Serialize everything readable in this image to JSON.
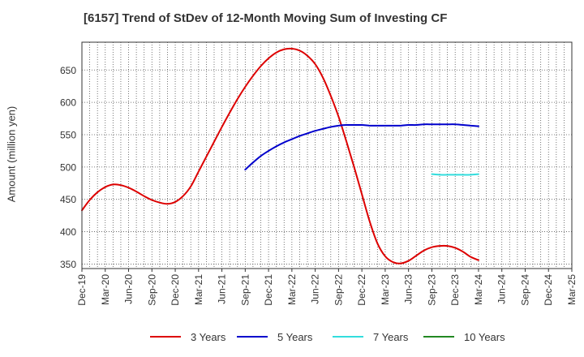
{
  "chart_data": {
    "type": "line",
    "title": "[6157]  Trend of StDev of 12-Month Moving Sum of Investing CF",
    "xlabel": "",
    "ylabel": "Amount (million yen)",
    "ylim": [
      343,
      693
    ],
    "yticks": [
      350,
      400,
      450,
      500,
      550,
      600,
      650
    ],
    "x_tick_labels": [
      "Dec-19",
      "Mar-20",
      "Jun-20",
      "Sep-20",
      "Dec-20",
      "Mar-21",
      "Jun-21",
      "Sep-21",
      "Dec-21",
      "Mar-22",
      "Jun-22",
      "Sep-22",
      "Dec-22",
      "Mar-23",
      "Jun-23",
      "Sep-23",
      "Dec-23",
      "Mar-24",
      "Jun-24",
      "Sep-24",
      "Dec-24",
      "Mar-25"
    ],
    "grid": true,
    "legend_position": "bottom",
    "series": [
      {
        "name": "3 Years",
        "color": "#dd0000",
        "x": [
          "2019-12",
          "2020-01",
          "2020-02",
          "2020-03",
          "2020-04",
          "2020-05",
          "2020-06",
          "2020-07",
          "2020-08",
          "2020-09",
          "2020-10",
          "2020-11",
          "2020-12",
          "2021-01",
          "2021-02",
          "2021-03",
          "2021-04",
          "2021-05",
          "2021-06",
          "2021-07",
          "2021-08",
          "2021-09",
          "2021-10",
          "2021-11",
          "2021-12",
          "2022-01",
          "2022-02",
          "2022-03",
          "2022-04",
          "2022-05",
          "2022-06",
          "2022-07",
          "2022-08",
          "2022-09",
          "2022-10",
          "2022-11",
          "2022-12",
          "2023-01",
          "2023-02",
          "2023-03",
          "2023-04",
          "2023-05",
          "2023-06",
          "2023-07",
          "2023-08",
          "2023-09",
          "2023-10",
          "2023-11",
          "2023-12",
          "2024-01",
          "2024-02",
          "2024-03"
        ],
        "values": [
          433,
          449,
          461,
          469,
          473,
          472,
          468,
          462,
          455,
          449,
          445,
          443,
          446,
          455,
          470,
          493,
          516,
          539,
          562,
          584,
          605,
          624,
          641,
          656,
          668,
          677,
          682,
          683,
          680,
          672,
          659,
          638,
          610,
          578,
          540,
          500,
          458,
          416,
          382,
          362,
          353,
          351,
          355,
          363,
          371,
          376,
          378,
          378,
          375,
          369,
          361,
          356
        ]
      },
      {
        "name": "5 Years",
        "color": "#0000cc",
        "x": [
          "2021-09",
          "2021-10",
          "2021-11",
          "2021-12",
          "2022-01",
          "2022-02",
          "2022-03",
          "2022-04",
          "2022-05",
          "2022-06",
          "2022-07",
          "2022-08",
          "2022-09",
          "2022-10",
          "2022-11",
          "2022-12",
          "2023-01",
          "2023-02",
          "2023-03",
          "2023-04",
          "2023-05",
          "2023-06",
          "2023-07",
          "2023-08",
          "2023-09",
          "2023-10",
          "2023-11",
          "2023-12",
          "2024-01",
          "2024-02",
          "2024-03"
        ],
        "values": [
          496,
          507,
          517,
          525,
          532,
          538,
          543,
          548,
          552,
          556,
          559,
          562,
          564,
          565,
          565,
          565,
          564,
          564,
          564,
          564,
          564,
          565,
          565,
          566,
          566,
          566,
          566,
          566,
          565,
          564,
          563
        ]
      },
      {
        "name": "7 Years",
        "color": "#33dddd",
        "x": [
          "2023-09",
          "2023-10",
          "2023-11",
          "2023-12",
          "2024-01",
          "2024-02",
          "2024-03"
        ],
        "values": [
          489,
          488,
          488,
          488,
          488,
          488,
          489
        ]
      },
      {
        "name": "10 Years",
        "color": "#228822",
        "x": [],
        "values": []
      }
    ]
  }
}
